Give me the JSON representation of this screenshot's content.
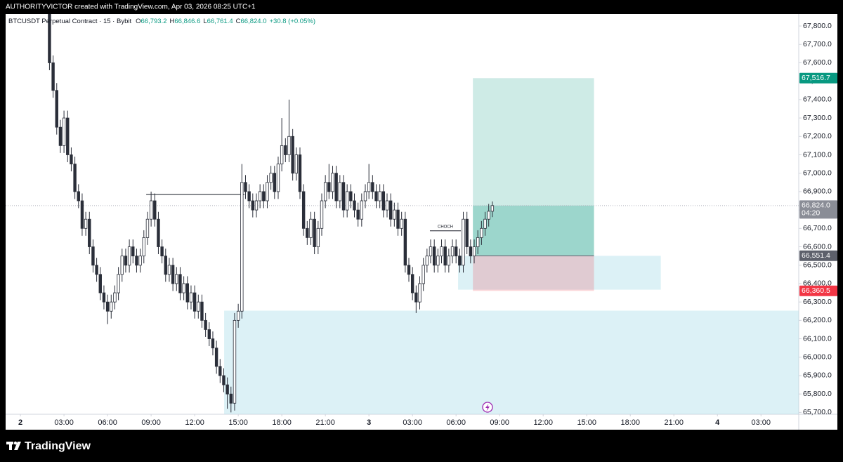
{
  "header": "AUTHORITYVICTOR created with TradingView.com, Apr 03, 2026 08:25 UTC+1",
  "footer": {
    "brand": "TradingView"
  },
  "chart_data": {
    "type": "candlestick",
    "legend": {
      "symbol": "BTCUSDT Perpetual Contract · 15 · Bybit",
      "ohlc": [
        {
          "key": "O",
          "value": "66,793.2"
        },
        {
          "key": "H",
          "value": "66,846.6"
        },
        {
          "key": "L",
          "value": "66,761.4"
        },
        {
          "key": "C",
          "value": "66,824.0"
        }
      ],
      "change": "+30.8 (+0.05%)"
    },
    "up_color": "#ffffff",
    "down_color": "#2a2e39",
    "wick_color": "#2a2e39",
    "legend_value_color": "#089981",
    "xlim": [
      -1.02,
      53.6
    ],
    "xticks": [
      {
        "value": 0,
        "label": "2"
      },
      {
        "value": 3,
        "label": "03:00"
      },
      {
        "value": 6,
        "label": "06:00"
      },
      {
        "value": 9,
        "label": "09:00"
      },
      {
        "value": 12,
        "label": "12:00"
      },
      {
        "value": 15,
        "label": "15:00"
      },
      {
        "value": 18,
        "label": "18:00"
      },
      {
        "value": 21,
        "label": "21:00"
      },
      {
        "value": 24,
        "label": "3"
      },
      {
        "value": 27,
        "label": "03:00"
      },
      {
        "value": 30,
        "label": "06:00"
      },
      {
        "value": 33,
        "label": "09:00"
      },
      {
        "value": 36,
        "label": "12:00"
      },
      {
        "value": 39,
        "label": "15:00"
      },
      {
        "value": 42,
        "label": "18:00"
      },
      {
        "value": 45,
        "label": "21:00"
      },
      {
        "value": 48,
        "label": "4"
      },
      {
        "value": 51,
        "label": "03:00"
      }
    ],
    "ylim": [
      65690,
      67865
    ],
    "yticks": [
      {
        "value": 65700,
        "label": "65,700.0"
      },
      {
        "value": 65800,
        "label": "65,800.0"
      },
      {
        "value": 65900,
        "label": "65,900.0"
      },
      {
        "value": 66000,
        "label": "66,000.0"
      },
      {
        "value": 66100,
        "label": "66,100.0"
      },
      {
        "value": 66200,
        "label": "66,200.0"
      },
      {
        "value": 66300,
        "label": "66,300.0"
      },
      {
        "value": 66400,
        "label": "66,400.0"
      },
      {
        "value": 66500,
        "label": "66,500.0"
      },
      {
        "value": 66600,
        "label": "66,600.0"
      },
      {
        "value": 66700,
        "label": "66,700.0"
      },
      {
        "value": 66800,
        "label": "66,800.0"
      },
      {
        "value": 66900,
        "label": "66,900.0"
      },
      {
        "value": 67000,
        "label": "67,000.0"
      },
      {
        "value": 67100,
        "label": "67,100.0"
      },
      {
        "value": 67200,
        "label": "67,200.0"
      },
      {
        "value": 67300,
        "label": "67,300.0"
      },
      {
        "value": 67400,
        "label": "67,400.0"
      },
      {
        "value": 67500,
        "label": "67,500.0"
      },
      {
        "value": 67600,
        "label": "67,600.0"
      },
      {
        "value": 67700,
        "label": "67,700.0"
      },
      {
        "value": 67800,
        "label": "67,800.0"
      }
    ],
    "x": [
      2,
      2.25,
      2.5,
      2.75,
      3,
      3.25,
      3.5,
      3.75,
      4,
      4.25,
      4.5,
      4.75,
      5,
      5.25,
      5.5,
      5.75,
      6,
      6.25,
      6.5,
      6.75,
      7,
      7.25,
      7.5,
      7.75,
      8,
      8.25,
      8.5,
      8.75,
      9,
      9.25,
      9.5,
      9.75,
      10,
      10.25,
      10.5,
      10.75,
      11,
      11.25,
      11.5,
      11.75,
      12,
      12.25,
      12.5,
      12.75,
      13,
      13.25,
      13.5,
      13.75,
      14,
      14.25,
      14.5,
      14.75,
      15,
      15.25,
      15.5,
      15.75,
      16,
      16.25,
      16.5,
      16.75,
      17,
      17.25,
      17.5,
      17.75,
      18,
      18.25,
      18.5,
      18.75,
      19,
      19.25,
      19.5,
      19.75,
      20,
      20.25,
      20.5,
      20.75,
      21,
      21.25,
      21.5,
      21.75,
      22,
      22.25,
      22.5,
      22.75,
      23,
      23.25,
      23.5,
      23.75,
      24,
      24.25,
      24.5,
      24.75,
      25,
      25.25,
      25.5,
      25.75,
      26,
      26.25,
      26.5,
      26.75,
      27,
      27.25,
      27.5,
      27.75,
      28,
      28.25,
      28.5,
      28.75,
      29,
      29.25,
      29.5,
      29.75,
      30,
      30.25,
      30.5,
      30.75,
      31,
      31.25,
      31.5,
      31.75,
      32,
      32.25,
      32.5
    ],
    "open": [
      67900,
      67600,
      67450,
      67250,
      67150,
      67300,
      67100,
      67050,
      66900,
      66850,
      66700,
      66750,
      66600,
      66500,
      66450,
      66350,
      66300,
      66250,
      66300,
      66350,
      66450,
      66550,
      66500,
      66600,
      66550,
      66500,
      66550,
      66650,
      66750,
      66850,
      66750,
      66600,
      66550,
      66450,
      66500,
      66400,
      66450,
      66350,
      66400,
      66300,
      66350,
      66250,
      66300,
      66200,
      66150,
      66100,
      66050,
      65950,
      65900,
      65850,
      65800,
      65750,
      66200,
      66250,
      66950,
      66900,
      66850,
      66800,
      66850,
      66900,
      66850,
      66950,
      67000,
      66900,
      67050,
      67150,
      67100,
      67200,
      67000,
      67100,
      66900,
      66700,
      66650,
      66750,
      66600,
      66700,
      66850,
      66950,
      66900,
      67000,
      66850,
      66950,
      66800,
      66900,
      66850,
      66800,
      66750,
      66850,
      66900,
      66950,
      66900,
      66850,
      66900,
      66800,
      66850,
      66750,
      66800,
      66700,
      66750,
      66500,
      66450,
      66350,
      66300,
      66400,
      66500,
      66550,
      66600,
      66500,
      66550,
      66600,
      66500,
      66550,
      66600,
      66550,
      66500,
      66750,
      66600,
      66550,
      66600,
      66650,
      66700,
      66750,
      66793.2
    ],
    "high": [
      68000,
      67640,
      67490,
      67290,
      67340,
      67340,
      67140,
      67090,
      66940,
      66890,
      66790,
      66790,
      66640,
      66540,
      66490,
      66390,
      66340,
      66340,
      66390,
      66490,
      66590,
      66590,
      66640,
      66640,
      66590,
      66590,
      66690,
      66790,
      66900,
      66890,
      66790,
      66640,
      66590,
      66540,
      66540,
      66490,
      66490,
      66440,
      66440,
      66390,
      66390,
      66340,
      66340,
      66240,
      66190,
      66140,
      66090,
      65990,
      65940,
      65890,
      65840,
      66240,
      66290,
      67050,
      66990,
      66940,
      66890,
      66890,
      66940,
      66940,
      66990,
      67040,
      67040,
      67090,
      67300,
      67190,
      67400,
      67240,
      67140,
      67140,
      66940,
      66740,
      66790,
      66790,
      66740,
      66890,
      66990,
      67050,
      67040,
      67040,
      66990,
      66990,
      66940,
      66940,
      66890,
      66840,
      66890,
      66940,
      67050,
      66990,
      66940,
      66940,
      66940,
      66890,
      66890,
      66840,
      66840,
      66790,
      66790,
      66540,
      66490,
      66390,
      66440,
      66540,
      66590,
      66640,
      66640,
      66590,
      66640,
      66640,
      66590,
      66640,
      66640,
      66590,
      66790,
      66790,
      66640,
      66640,
      66690,
      66740,
      66790,
      66833.2,
      66846.6
    ],
    "low": [
      67560,
      67410,
      67210,
      67110,
      67110,
      67060,
      67010,
      66860,
      66810,
      66660,
      66660,
      66560,
      66460,
      66410,
      66310,
      66260,
      66180,
      66210,
      66260,
      66310,
      66410,
      66460,
      66460,
      66510,
      66460,
      66460,
      66510,
      66610,
      66710,
      66710,
      66560,
      66510,
      66410,
      66410,
      66360,
      66360,
      66310,
      66310,
      66260,
      66260,
      66210,
      66210,
      66160,
      66110,
      66060,
      66010,
      65910,
      65860,
      65810,
      65720,
      65700,
      65710,
      66160,
      66210,
      66860,
      66810,
      66760,
      66760,
      66810,
      66810,
      66810,
      66910,
      66860,
      66860,
      67010,
      67060,
      67060,
      66960,
      66960,
      66860,
      66660,
      66610,
      66610,
      66560,
      66560,
      66660,
      66810,
      66860,
      66860,
      66810,
      66810,
      66760,
      66760,
      66810,
      66760,
      66710,
      66710,
      66810,
      66860,
      66860,
      66810,
      66810,
      66760,
      66760,
      66710,
      66710,
      66660,
      66660,
      66460,
      66410,
      66310,
      66240,
      66260,
      66360,
      66460,
      66510,
      66460,
      66460,
      66510,
      66460,
      66460,
      66510,
      66510,
      66460,
      66460,
      66560,
      66510,
      66510,
      66560,
      66610,
      66660,
      66710,
      66761.4
    ],
    "close": [
      67600,
      67450,
      67250,
      67150,
      67300,
      67100,
      67050,
      66900,
      66850,
      66700,
      66750,
      66600,
      66500,
      66450,
      66350,
      66300,
      66250,
      66300,
      66350,
      66450,
      66550,
      66500,
      66600,
      66550,
      66500,
      66550,
      66650,
      66750,
      66850,
      66750,
      66600,
      66550,
      66450,
      66500,
      66400,
      66450,
      66350,
      66400,
      66300,
      66350,
      66250,
      66300,
      66200,
      66150,
      66100,
      66050,
      65950,
      65900,
      65850,
      65800,
      65750,
      66200,
      66250,
      66950,
      66900,
      66850,
      66800,
      66850,
      66900,
      66850,
      66950,
      67000,
      66900,
      67050,
      67150,
      67100,
      67200,
      67000,
      67100,
      66900,
      66700,
      66650,
      66750,
      66600,
      66700,
      66850,
      66950,
      66900,
      67000,
      66850,
      66950,
      66800,
      66900,
      66850,
      66800,
      66750,
      66850,
      66900,
      66950,
      66900,
      66850,
      66900,
      66800,
      66850,
      66750,
      66800,
      66700,
      66750,
      66500,
      66450,
      66350,
      66300,
      66400,
      66500,
      66550,
      66600,
      66500,
      66550,
      66600,
      66500,
      66550,
      66600,
      66550,
      66500,
      66750,
      66600,
      66550,
      66600,
      66650,
      66700,
      66750,
      66793.2,
      66824.0
    ],
    "zones": [
      {
        "x": [
          14.03,
          53.6
        ],
        "y": [
          65690,
          66253
        ],
        "color": "#b2dfeb"
      },
      {
        "x": [
          30.14,
          44.1
        ],
        "y": [
          66367,
          66551
        ],
        "color": "#b2dfeb"
      }
    ],
    "lines": [
      {
        "x": [
          8.66,
          15.43
        ],
        "y": 66885
      },
      {
        "x": [
          28.2,
          30.33
        ],
        "y": 66687,
        "label": "CHOCH"
      }
    ],
    "position": {
      "x": [
        31.16,
        39.5
      ],
      "entry": 66551.4,
      "target": 67516.7,
      "stop": 66360.5,
      "entry_label": "66,551.4",
      "target_label": "67,516.7",
      "stop_label": "66,360.5",
      "target_color": "#089981",
      "stop_color": "#f23645",
      "entry_color": "#5d606b"
    },
    "last_price": {
      "value": 66824.0,
      "label": "66,824.0",
      "countdown": "04:20",
      "color": "#8a8d96"
    }
  }
}
